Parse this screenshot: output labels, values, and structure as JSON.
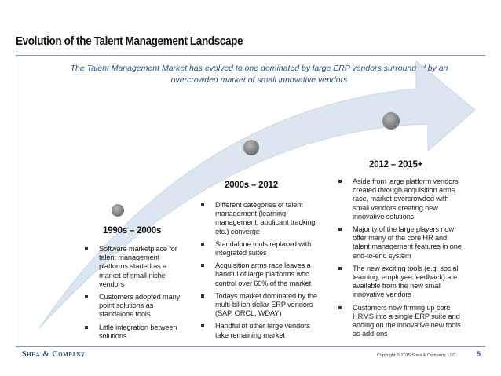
{
  "title": "Evolution of the Talent Management Landscape",
  "subtitle": "The Talent Management Market has evolved to one dominated by large ERP vendors surrounded by an overcrowded market of small innovative vendors",
  "eras": [
    {
      "label": "1990s – 2000s",
      "bullets": [
        "Software marketplace for talent management platforms started as a market of small niche vendors",
        "Customers adopted many point solutions as standalone tools",
        "Little integration between solutions"
      ]
    },
    {
      "label": "2000s – 2012",
      "bullets": [
        "Different categories of talent management (learning management, applicant tracking, etc.) converge",
        "Standalone tools replaced with integrated suites",
        "Acquisition arms race leaves a handful of large platforms who control over 60% of the market",
        "Todays market dominated by the multi-billion dollar ERP vendors (SAP, ORCL, WDAY)",
        "Handful of other large vendors take remaining market"
      ]
    },
    {
      "label": "2012 – 2015+",
      "bullets": [
        "Aside from large platform vendors created through acquisition arms race, market overcrowded with small vendors creating new innovative solutions",
        "Majority of the large players now offer many of the core HR and talent management features in one end-to-end system",
        "The new exciting tools (e.g. social learning, employee feedback) are available from the new small innovative vendors",
        "Customers now firming up core HRMS into a single ERP suite and adding on the innovative new tools as add-ons"
      ]
    }
  ],
  "footer": {
    "brand": "Shea & Company",
    "copyright": "Copyright © 2015 Shea & Company, LLC",
    "page": "5"
  },
  "colors": {
    "arrow_fill": "#dce6f1",
    "milestone_dot": "#8c8c8c",
    "accent": "#2b4d78"
  }
}
